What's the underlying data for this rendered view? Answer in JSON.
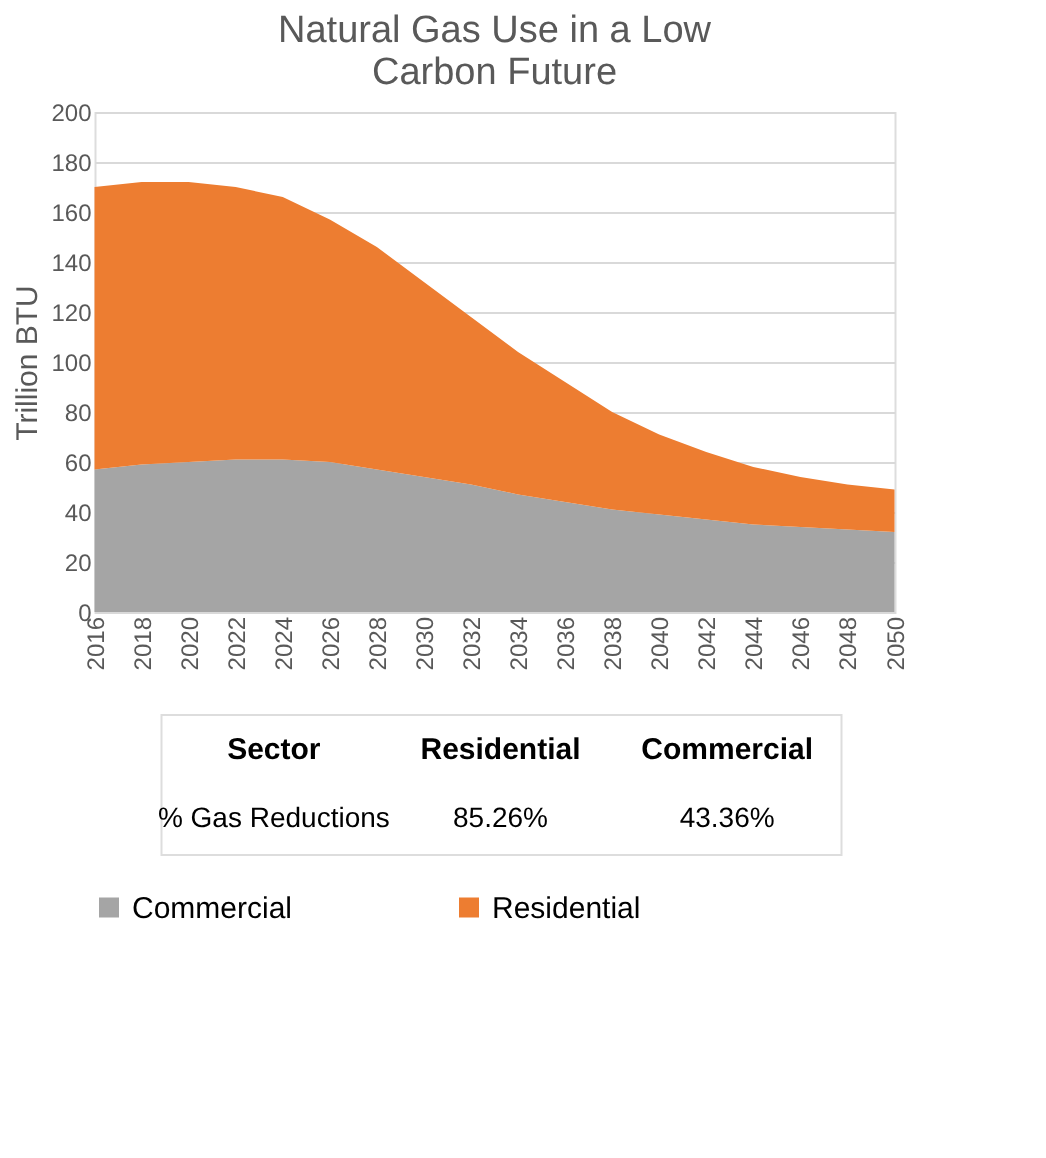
{
  "chart_data": {
    "type": "area",
    "title": "Natural Gas Use in a Low Carbon Future",
    "ylabel": "Trillion BTU",
    "stacked": true,
    "x": [
      2016,
      2018,
      2020,
      2022,
      2024,
      2026,
      2028,
      2030,
      2032,
      2034,
      2036,
      2038,
      2040,
      2042,
      2044,
      2046,
      2048,
      2050
    ],
    "series": [
      {
        "name": "Commercial",
        "color": "#a5a5a5",
        "values": [
          57,
          59,
          60,
          61,
          61,
          60,
          57,
          54,
          51,
          47,
          44,
          41,
          39,
          37,
          35,
          34,
          33,
          32
        ]
      },
      {
        "name": "Residential",
        "color": "#ed7d31",
        "values": [
          113,
          113,
          112,
          109,
          105,
          97,
          89,
          78,
          67,
          57,
          48,
          39,
          32,
          27,
          23,
          20,
          18,
          17
        ]
      }
    ],
    "xlim": [
      2016,
      2050
    ],
    "xticks": [
      2016,
      2018,
      2020,
      2022,
      2024,
      2026,
      2028,
      2030,
      2032,
      2034,
      2036,
      2038,
      2040,
      2042,
      2044,
      2046,
      2048,
      2050
    ],
    "ylim": [
      0,
      200
    ],
    "yticks": [
      0,
      20,
      40,
      60,
      80,
      100,
      120,
      140,
      160,
      180,
      200
    ],
    "grid": "y",
    "legend": "bottom",
    "annotations": [
      "Sector",
      "Residential",
      "Commercial",
      "% Gas Reductions",
      "85.26%",
      "43.36%"
    ]
  }
}
